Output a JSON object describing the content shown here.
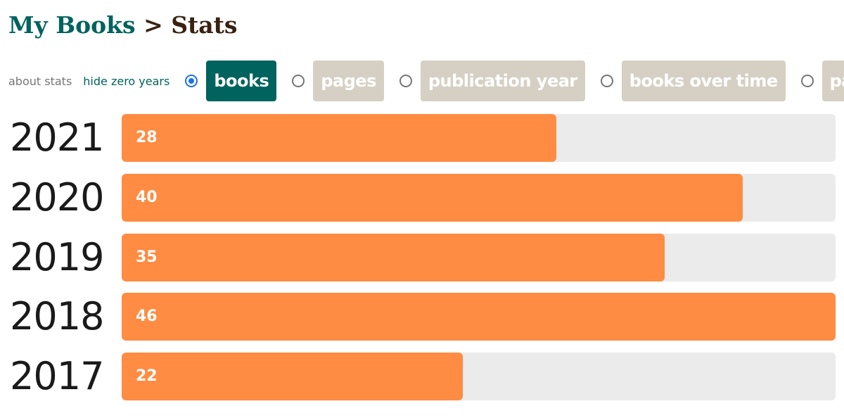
{
  "breadcrumb": {
    "parent": "My Books",
    "separator": ">",
    "current": "Stats"
  },
  "controls": {
    "about_label": "about stats",
    "hide_zero_label": "hide zero years",
    "options": [
      {
        "label": "books",
        "selected": true
      },
      {
        "label": "pages",
        "selected": false
      },
      {
        "label": "publication year",
        "selected": false
      },
      {
        "label": "books over time",
        "selected": false
      },
      {
        "label": "pages over time",
        "selected": false
      }
    ]
  },
  "colors": {
    "accent": "#00635d",
    "bar": "#ff8c42",
    "track": "#ebebeb",
    "inactive_pill": "#d6d0c4"
  },
  "chart_data": {
    "type": "bar",
    "orientation": "horizontal",
    "categories": [
      "2021",
      "2020",
      "2019",
      "2018",
      "2017"
    ],
    "values": [
      28,
      40,
      35,
      46,
      22
    ],
    "max": 46
  }
}
